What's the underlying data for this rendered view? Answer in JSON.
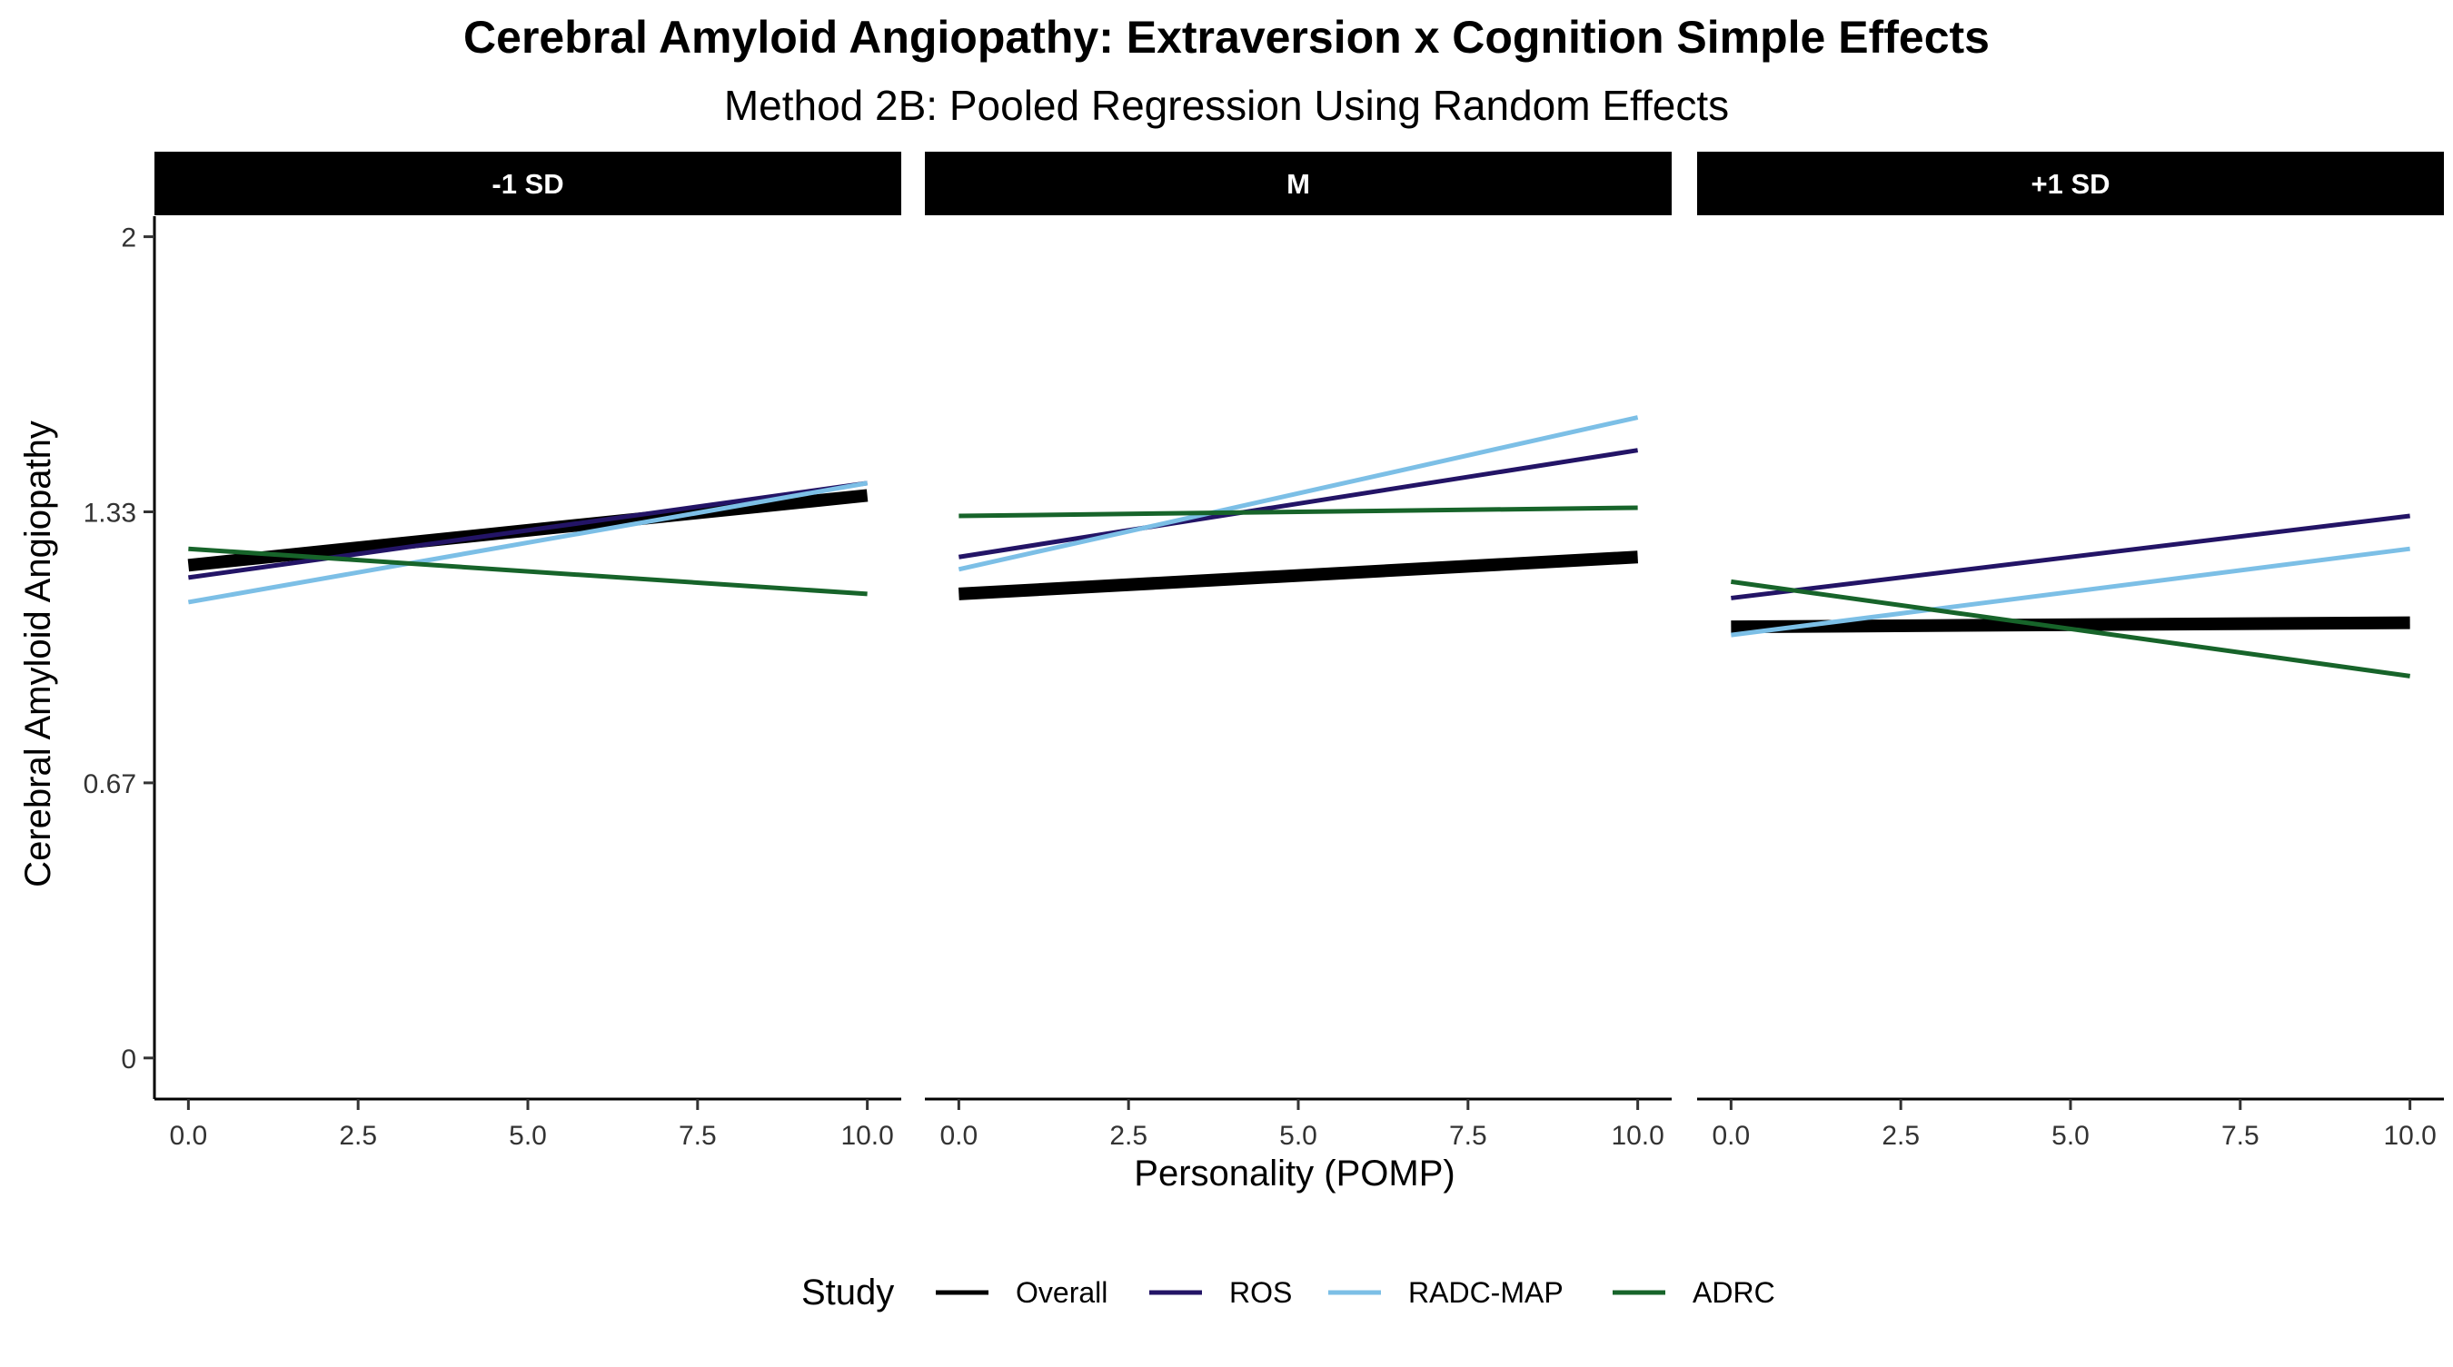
{
  "chart_data": {
    "type": "line",
    "title": "Cerebral Amyloid Angiopathy: Extraversion x Cognition Simple Effects",
    "subtitle": "Method 2B: Pooled Regression Using Random Effects",
    "xlabel": "Personality (POMP)",
    "ylabel": "Cerebral Amyloid Angiopathy",
    "xlim": [
      -0.5,
      10.5
    ],
    "ylim": [
      -0.1,
      2.05
    ],
    "x_ticks": [
      0,
      2.5,
      5,
      7.5,
      10
    ],
    "x_tick_labels": [
      "0.0",
      "2.5",
      "5.0",
      "7.5",
      "10.0"
    ],
    "y_ticks": [
      0,
      0.67,
      1.33,
      2
    ],
    "y_tick_labels": [
      "0",
      "0.67",
      "1.33",
      "2"
    ],
    "grid": false,
    "legend": {
      "title": "Study",
      "position": "bottom",
      "entries": [
        "Overall",
        "ROS",
        "RADC-MAP",
        "ADRC"
      ]
    },
    "colors": {
      "Overall": "#000000",
      "ROS": "#231466",
      "RADC-MAP": "#7CBFE6",
      "ADRC": "#17642A"
    },
    "panels": [
      {
        "label": "-1 SD",
        "series": [
          {
            "name": "Overall",
            "x": [
              0,
              10
            ],
            "y": [
              1.2,
              1.37
            ]
          },
          {
            "name": "ROS",
            "x": [
              0,
              10
            ],
            "y": [
              1.17,
              1.4
            ]
          },
          {
            "name": "RADC-MAP",
            "x": [
              0,
              10
            ],
            "y": [
              1.11,
              1.4
            ]
          },
          {
            "name": "ADRC",
            "x": [
              0,
              10
            ],
            "y": [
              1.24,
              1.13
            ]
          }
        ]
      },
      {
        "label": "M",
        "series": [
          {
            "name": "Overall",
            "x": [
              0,
              10
            ],
            "y": [
              1.13,
              1.22
            ]
          },
          {
            "name": "ROS",
            "x": [
              0,
              10
            ],
            "y": [
              1.22,
              1.48
            ]
          },
          {
            "name": "RADC-MAP",
            "x": [
              0,
              10
            ],
            "y": [
              1.19,
              1.56
            ]
          },
          {
            "name": "ADRC",
            "x": [
              0,
              10
            ],
            "y": [
              1.32,
              1.34
            ]
          }
        ]
      },
      {
        "label": "+1 SD",
        "series": [
          {
            "name": "Overall",
            "x": [
              0,
              10
            ],
            "y": [
              1.05,
              1.06
            ]
          },
          {
            "name": "ROS",
            "x": [
              0,
              10
            ],
            "y": [
              1.12,
              1.32
            ]
          },
          {
            "name": "RADC-MAP",
            "x": [
              0,
              10
            ],
            "y": [
              1.03,
              1.24
            ]
          },
          {
            "name": "ADRC",
            "x": [
              0,
              10
            ],
            "y": [
              1.16,
              0.93
            ]
          }
        ]
      }
    ]
  }
}
